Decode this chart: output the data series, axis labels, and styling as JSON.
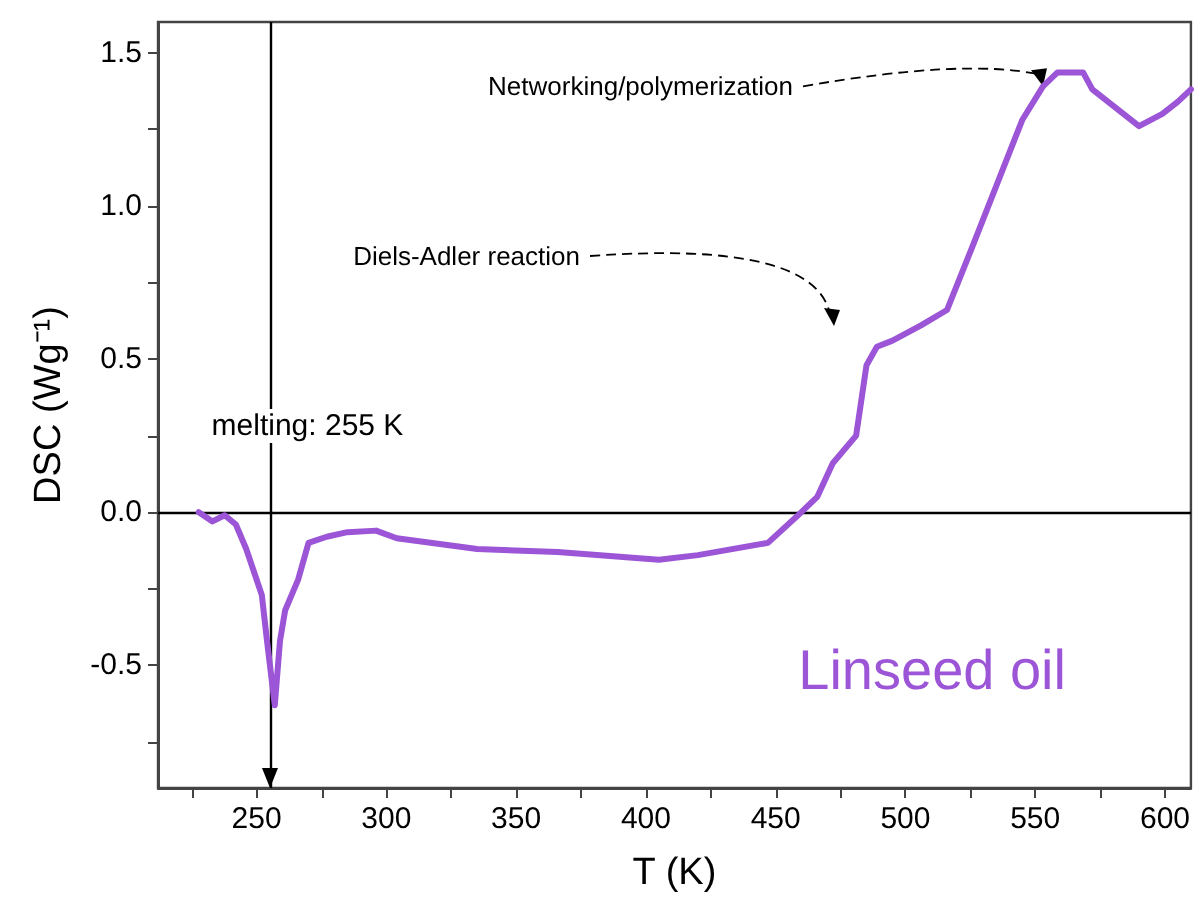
{
  "chart_data": {
    "type": "line",
    "xlabel": "T (K)",
    "ylabel": "DSC (Wg⁻¹)",
    "x": [
      227.7,
      233,
      237.7,
      242,
      246,
      252,
      254,
      257,
      259,
      261,
      266,
      270,
      277,
      285,
      296,
      304,
      335,
      366,
      405,
      420,
      447,
      458,
      466,
      472,
      481,
      485,
      489,
      495,
      506,
      516,
      525,
      538.5,
      545,
      553,
      558.5,
      568.5,
      572,
      590,
      599,
      605,
      610
    ],
    "series": [
      {
        "name": "Linseed oil",
        "color": "#9b55d6",
        "values": [
          0,
          -0.03,
          -0.01,
          -0.04,
          -0.12,
          -0.27,
          -0.42,
          -0.63,
          -0.42,
          -0.32,
          -0.22,
          -0.1,
          -0.08,
          -0.065,
          -0.06,
          -0.085,
          -0.12,
          -0.13,
          -0.155,
          -0.14,
          -0.1,
          -0.015,
          0.05,
          0.16,
          0.25,
          0.48,
          0.54,
          0.56,
          0.61,
          0.66,
          0.85,
          1.14,
          1.28,
          1.39,
          1.435,
          1.435,
          1.38,
          1.26,
          1.3,
          1.34,
          1.38
        ]
      }
    ],
    "xlim": [
      212,
      610
    ],
    "ylim": [
      -0.9,
      1.6
    ],
    "xticks": [
      {
        "value": 225,
        "label": null
      },
      250,
      {
        "value": 275,
        "label": null
      },
      300,
      {
        "value": 325,
        "label": null
      },
      350,
      {
        "value": 375,
        "label": null
      },
      400,
      {
        "value": 425,
        "label": null
      },
      450,
      {
        "value": 475,
        "label": null
      },
      500,
      {
        "value": 525,
        "label": null
      },
      550,
      {
        "value": 575,
        "label": null
      },
      600
    ],
    "yticks": [
      {
        "value": -0.75,
        "label": null
      },
      -0.5,
      {
        "value": -0.25,
        "label": null
      },
      {
        "value": 0,
        "label": "0.0"
      },
      {
        "value": 0.25,
        "label": null
      },
      0.5,
      {
        "value": 0.75,
        "label": null
      },
      {
        "value": 1,
        "label": "1.0"
      },
      {
        "value": 1.25,
        "label": null
      },
      1.5
    ],
    "ref_lines": [
      {
        "axis": "y",
        "value": 0,
        "label": null,
        "color": "#000000"
      },
      {
        "axis": "x",
        "value": 255,
        "label": "melting: 255 K",
        "color": "#000000"
      }
    ],
    "annotations": [
      {
        "text": "Networking/polymerization",
        "x": 553,
        "y": 1.39
      },
      "Diels-Adler reaction"
    ],
    "legend": "bottom right",
    "grid": false,
    "marker": "none",
    "line_style": "solid"
  }
}
